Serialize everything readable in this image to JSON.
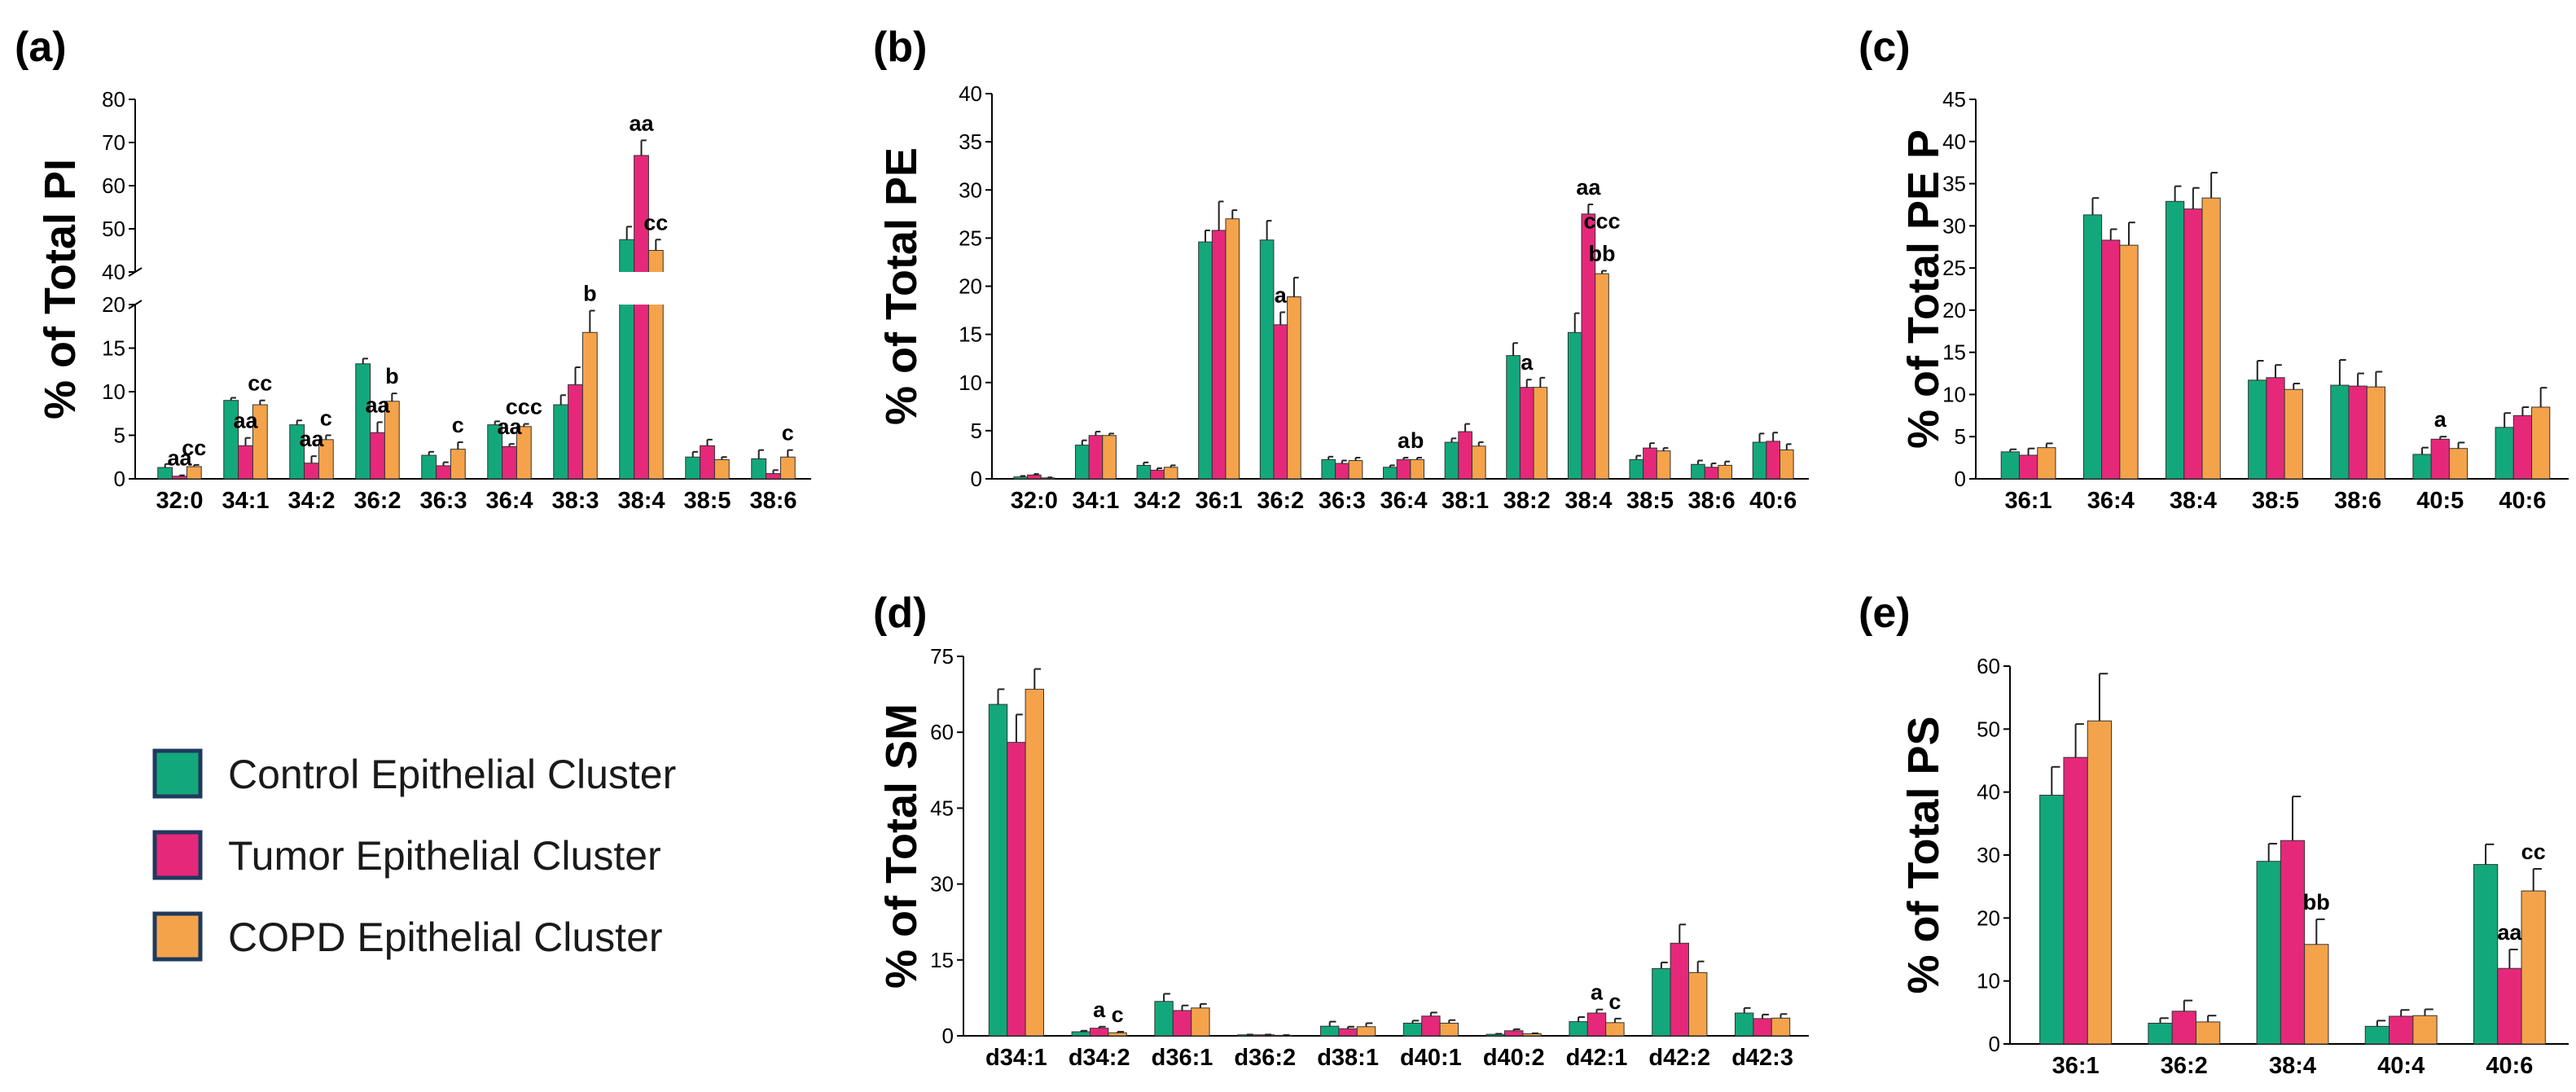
{
  "legend": {
    "items": [
      {
        "label": "Control Epithelial Cluster",
        "color": "#13a87c"
      },
      {
        "label": "Tumor Epithelial Cluster",
        "color": "#e6287a"
      },
      {
        "label": "COPD Epithelial Cluster",
        "color": "#f5a34a"
      }
    ]
  },
  "chart_data": [
    {
      "panel": "(a)",
      "type": "bar",
      "ylabel": "% of Total PI",
      "ylim": [
        0,
        80
      ],
      "axis_break": [
        20,
        40
      ],
      "yticks_lower": [
        0,
        5,
        10,
        15,
        20
      ],
      "yticks_upper": [
        40,
        50,
        60,
        70,
        80
      ],
      "categories": [
        "32:0",
        "34:1",
        "34:2",
        "36:2",
        "36:3",
        "36:4",
        "38:3",
        "38:4",
        "38:5",
        "38:6"
      ],
      "series": [
        {
          "name": "Control Epithelial Cluster",
          "values": [
            1.3,
            9.0,
            6.2,
            13.2,
            2.7,
            6.2,
            8.5,
            47.5,
            2.5,
            2.3
          ],
          "errors": [
            0.4,
            0.3,
            0.5,
            0.6,
            0.4,
            0.4,
            1.1,
            3.0,
            0.6,
            1.0
          ]
        },
        {
          "name": "Tumor Epithelial Cluster",
          "values": [
            0.3,
            3.8,
            1.8,
            5.3,
            1.5,
            3.7,
            10.8,
            67.0,
            3.8,
            0.6
          ],
          "errors": [
            0.1,
            0.9,
            0.8,
            1.2,
            0.4,
            0.3,
            2.0,
            3.5,
            0.7,
            0.4
          ]
        },
        {
          "name": "COPD Epithelial Cluster",
          "values": [
            1.4,
            8.5,
            4.5,
            8.9,
            3.4,
            6.0,
            16.8,
            45.0,
            2.2,
            2.5
          ],
          "errors": [
            0.2,
            0.5,
            0.5,
            0.9,
            0.8,
            0.3,
            2.5,
            2.5,
            0.3,
            0.8
          ]
        }
      ],
      "annotations": [
        {
          "category": "32:0",
          "series": 1,
          "text": "aa"
        },
        {
          "category": "32:0",
          "series": 2,
          "text": "cc"
        },
        {
          "category": "34:1",
          "series": 1,
          "text": "aa"
        },
        {
          "category": "34:1",
          "series": 2,
          "text": "cc"
        },
        {
          "category": "34:2",
          "series": 1,
          "text": "aa"
        },
        {
          "category": "34:2",
          "series": 2,
          "text": "c"
        },
        {
          "category": "36:2",
          "series": 1,
          "text": "aa"
        },
        {
          "category": "36:2",
          "series": 2,
          "text": "b"
        },
        {
          "category": "36:3",
          "series": 2,
          "text": "c"
        },
        {
          "category": "36:4",
          "series": 1,
          "text": "aa"
        },
        {
          "category": "36:4",
          "series": 2,
          "text": "ccc"
        },
        {
          "category": "38:3",
          "series": 2,
          "text": "b"
        },
        {
          "category": "38:4",
          "series": 1,
          "text": "aa"
        },
        {
          "category": "38:4",
          "series": 2,
          "text": "cc"
        },
        {
          "category": "38:6",
          "series": 2,
          "text": "c"
        }
      ]
    },
    {
      "panel": "(b)",
      "type": "bar",
      "ylabel": "% of Total PE",
      "ylim": [
        0,
        40
      ],
      "yticks": [
        0,
        5,
        10,
        15,
        20,
        25,
        30,
        35,
        40
      ],
      "categories": [
        "32:0",
        "34:1",
        "34:2",
        "36:1",
        "36:2",
        "36:3",
        "36:4",
        "38:1",
        "38:2",
        "38:4",
        "38:5",
        "38:6",
        "40:6"
      ],
      "series": [
        {
          "name": "Control Epithelial Cluster",
          "values": [
            0.2,
            3.5,
            1.4,
            24.6,
            24.8,
            2.0,
            1.2,
            3.8,
            12.8,
            15.2,
            2.0,
            1.5,
            3.8
          ],
          "errors": [
            0.1,
            0.5,
            0.3,
            1.2,
            2.0,
            0.3,
            0.2,
            0.4,
            1.3,
            2.0,
            0.4,
            0.4,
            0.9
          ]
        },
        {
          "name": "Tumor Epithelial Cluster",
          "values": [
            0.4,
            4.5,
            0.9,
            25.8,
            16.0,
            1.6,
            2.0,
            4.9,
            9.5,
            27.5,
            3.2,
            1.2,
            3.9
          ],
          "errors": [
            0.1,
            0.4,
            0.2,
            3.0,
            1.3,
            0.3,
            0.2,
            0.8,
            0.8,
            1.0,
            0.5,
            0.4,
            0.9
          ]
        },
        {
          "name": "COPD Epithelial Cluster",
          "values": [
            0.1,
            4.5,
            1.2,
            27.0,
            18.9,
            1.9,
            2.0,
            3.4,
            9.5,
            21.3,
            2.9,
            1.4,
            3.0
          ],
          "errors": [
            0.05,
            0.2,
            0.2,
            0.9,
            2.0,
            0.3,
            0.2,
            0.4,
            1.0,
            0.3,
            0.3,
            0.4,
            0.6
          ]
        }
      ],
      "annotations": [
        {
          "category": "36:2",
          "series": 1,
          "text": "a"
        },
        {
          "category": "36:4",
          "series": 1,
          "text": "a"
        },
        {
          "category": "36:4",
          "series": 2,
          "text": "b"
        },
        {
          "category": "38:2",
          "series": 1,
          "text": "a"
        },
        {
          "category": "38:4",
          "series": 1,
          "text": "aa"
        },
        {
          "category": "38:4",
          "series": 2,
          "text": "bb"
        },
        {
          "category": "38:4",
          "series": 2,
          "text": "ccc"
        }
      ]
    },
    {
      "panel": "(c)",
      "type": "bar",
      "ylabel": "% of Total PE P",
      "ylim": [
        0,
        45
      ],
      "yticks": [
        0,
        5,
        10,
        15,
        20,
        25,
        30,
        35,
        40,
        45
      ],
      "categories": [
        "36:1",
        "36:4",
        "38:4",
        "38:5",
        "38:6",
        "40:5",
        "40:6"
      ],
      "series": [
        {
          "name": "Control Epithelial Cluster",
          "values": [
            3.2,
            31.3,
            32.9,
            11.7,
            11.1,
            2.9,
            6.1
          ],
          "errors": [
            0.3,
            2.0,
            1.8,
            2.3,
            3.0,
            0.8,
            1.7
          ]
        },
        {
          "name": "Tumor Epithelial Cluster",
          "values": [
            2.8,
            28.3,
            32.0,
            12.0,
            11.0,
            4.7,
            7.5
          ],
          "errors": [
            0.8,
            1.3,
            2.5,
            1.5,
            1.5,
            0.3,
            1.0
          ]
        },
        {
          "name": "COPD Epithelial Cluster",
          "values": [
            3.7,
            27.7,
            33.3,
            10.6,
            10.9,
            3.6,
            8.5
          ],
          "errors": [
            0.5,
            2.7,
            3.0,
            0.7,
            1.8,
            0.7,
            2.3
          ]
        }
      ],
      "annotations": [
        {
          "category": "40:5",
          "series": 1,
          "text": "a"
        }
      ]
    },
    {
      "panel": "(d)",
      "type": "bar",
      "ylabel": "% of Total SM",
      "ylim": [
        0,
        75
      ],
      "yticks": [
        0,
        15,
        30,
        45,
        60,
        75
      ],
      "categories": [
        "d34:1",
        "d34:2",
        "d36:1",
        "d36:2",
        "d38:1",
        "d40:1",
        "d40:2",
        "d42:1",
        "d42:2",
        "d42:3"
      ],
      "series": [
        {
          "name": "Control Epithelial Cluster",
          "values": [
            65.5,
            0.8,
            6.8,
            0.2,
            1.9,
            2.5,
            0.3,
            2.8,
            13.3,
            4.5
          ],
          "errors": [
            3.0,
            0.2,
            1.5,
            0.05,
            0.9,
            0.5,
            0.1,
            0.9,
            1.2,
            1.0
          ]
        },
        {
          "name": "Tumor Epithelial Cluster",
          "values": [
            58.0,
            1.5,
            5.0,
            0.2,
            1.4,
            3.9,
            1.0,
            4.5,
            18.3,
            3.4
          ],
          "errors": [
            5.5,
            0.3,
            1.0,
            0.05,
            0.4,
            0.7,
            0.3,
            0.7,
            3.7,
            0.8
          ]
        },
        {
          "name": "COPD Epithelial Cluster",
          "values": [
            68.5,
            0.6,
            5.5,
            0.1,
            1.8,
            2.5,
            0.4,
            2.6,
            12.5,
            3.5
          ],
          "errors": [
            4.0,
            0.2,
            0.8,
            0.05,
            0.7,
            0.6,
            0.1,
            0.8,
            2.2,
            0.8
          ]
        }
      ],
      "annotations": [
        {
          "category": "d34:2",
          "series": 1,
          "text": "a"
        },
        {
          "category": "d34:2",
          "series": 2,
          "text": "c"
        },
        {
          "category": "d42:1",
          "series": 1,
          "text": "a"
        },
        {
          "category": "d42:1",
          "series": 2,
          "text": "c"
        }
      ]
    },
    {
      "panel": "(e)",
      "type": "bar",
      "ylabel": "% of Total PS",
      "ylim": [
        0,
        60
      ],
      "yticks": [
        0,
        10,
        20,
        30,
        40,
        50,
        60
      ],
      "categories": [
        "36:1",
        "36:2",
        "38:4",
        "40:4",
        "40:6"
      ],
      "series": [
        {
          "name": "Control Epithelial Cluster",
          "values": [
            39.5,
            3.3,
            29.0,
            2.8,
            28.5
          ],
          "errors": [
            4.5,
            0.8,
            2.8,
            0.9,
            3.2
          ]
        },
        {
          "name": "Tumor Epithelial Cluster",
          "values": [
            45.5,
            5.2,
            32.3,
            4.4,
            12.0
          ],
          "errors": [
            5.3,
            1.7,
            7.0,
            1.0,
            3.0
          ]
        },
        {
          "name": "COPD Epithelial Cluster",
          "values": [
            51.3,
            3.5,
            15.8,
            4.5,
            24.3
          ],
          "errors": [
            7.5,
            1.0,
            4.0,
            1.0,
            3.5
          ]
        }
      ],
      "annotations": [
        {
          "category": "38:4",
          "series": 2,
          "text": "bb"
        },
        {
          "category": "40:6",
          "series": 1,
          "text": "aa"
        },
        {
          "category": "40:6",
          "series": 2,
          "text": "cc"
        }
      ]
    }
  ]
}
